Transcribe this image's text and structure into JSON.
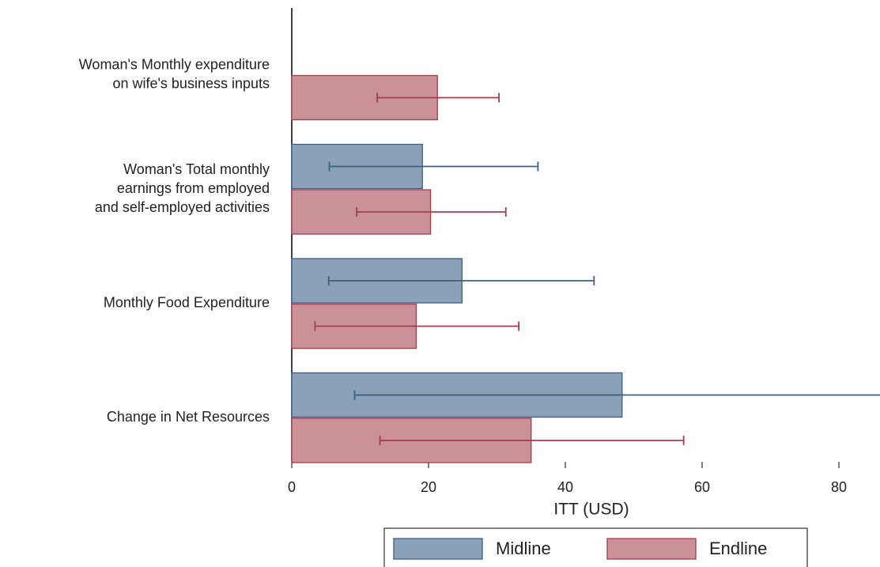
{
  "chart_data": {
    "type": "barh",
    "xlabel": "ITT (USD)",
    "categories": [
      [
        "Woman's Monthly expenditure",
        "on wife's business inputs"
      ],
      [
        "Woman's Total monthly",
        "earnings from employed",
        "and self-employed activities"
      ],
      [
        "Monthly Food Expenditure"
      ],
      [
        "Change in Net Resources"
      ]
    ],
    "series": [
      {
        "name": "Midline",
        "color": "#8ba1b8",
        "edge_color": "#3e5f80",
        "values": [
          null,
          19.1,
          24.9,
          48.3
        ],
        "ci_low": [
          null,
          5.5,
          5.4,
          9.2
        ],
        "ci_high": [
          null,
          36.0,
          44.2,
          87.4
        ]
      },
      {
        "name": "Endline",
        "color": "#c9919a",
        "edge_color": "#a53d4d",
        "values": [
          21.3,
          20.3,
          18.2,
          35.0
        ],
        "ci_low": [
          12.5,
          9.5,
          3.4,
          12.9
        ],
        "ci_high": [
          30.3,
          31.3,
          33.2,
          57.3
        ]
      }
    ],
    "xlim": [
      0,
      86
    ],
    "xticks": [
      0,
      20,
      40,
      60,
      80
    ]
  }
}
